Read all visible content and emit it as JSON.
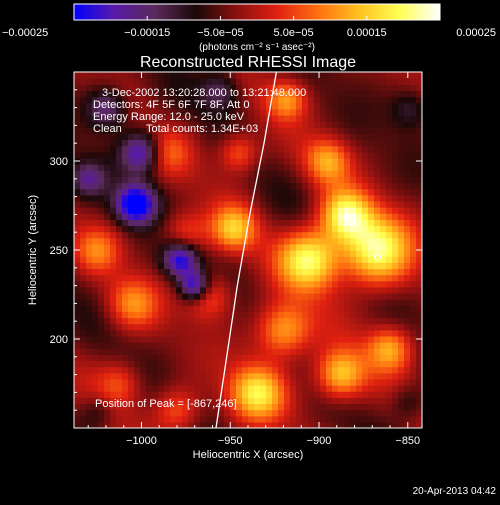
{
  "chart_data": {
    "type": "heatmap",
    "title": "Reconstructed RHESSI Image",
    "xlabel": "Heliocentric X (arcsec)",
    "ylabel": "Heliocentric Y (arcsec)",
    "xlim": [
      -1038,
      -842
    ],
    "ylim": [
      150,
      350
    ],
    "x_ticks": [
      -1000,
      -950,
      -900,
      -850
    ],
    "x_tick_labels": [
      "−1000",
      "−950",
      "−900",
      "−850"
    ],
    "y_ticks": [
      200,
      250,
      300
    ],
    "y_tick_labels": [
      "200",
      "250",
      "300"
    ],
    "colorbar": {
      "range": [
        -0.00025,
        0.00025
      ],
      "ticks": [
        -0.00025,
        -0.00015,
        -5e-05,
        5e-05,
        0.00015,
        0.00025
      ],
      "tick_labels": [
        "−0.00025",
        "−0.00015",
        "−5.0e−05",
        "5.0e−05",
        "0.00015",
        "0.00025"
      ],
      "unit_label": "(photons cm⁻² s⁻¹ asec⁻²)",
      "colors": [
        "#0000ff",
        "#5a1aa8",
        "#5a2a5a",
        "#1a0808",
        "#8a1010",
        "#e02010",
        "#ff7010",
        "#ffc020",
        "#ffff50",
        "#ffffff"
      ]
    },
    "annotations": [
      "3-Dec-2002 13:20:28.000 to 13:21:48.000",
      "Detectors: 4F 5F 6F 7F 8F, Att 0",
      "Energy Range: 12.0 - 25.0 keV",
      "Clean",
      "Total counts: 1.34E+03"
    ],
    "peak_label": "Position of Peak = [-867,246]",
    "peak": [
      -867,
      246
    ],
    "limb": [
      [
        -958,
        150
      ],
      [
        -952,
        190
      ],
      [
        -946,
        230
      ],
      [
        -939,
        270
      ],
      [
        -931,
        310
      ],
      [
        -924,
        350
      ]
    ],
    "blobs": [
      {
        "x": -868,
        "y": 250,
        "v": 0.00025,
        "s": 14
      },
      {
        "x": -885,
        "y": 270,
        "v": 0.00022,
        "s": 10
      },
      {
        "x": -905,
        "y": 245,
        "v": 0.00024,
        "s": 12
      },
      {
        "x": -920,
        "y": 205,
        "v": 0.00018,
        "s": 11
      },
      {
        "x": -935,
        "y": 170,
        "v": 0.00021,
        "s": 11
      },
      {
        "x": -888,
        "y": 180,
        "v": 0.0002,
        "s": 10
      },
      {
        "x": -860,
        "y": 195,
        "v": 0.00016,
        "s": 9
      },
      {
        "x": -895,
        "y": 300,
        "v": 0.00015,
        "s": 9
      },
      {
        "x": -918,
        "y": 335,
        "v": 0.00014,
        "s": 8
      },
      {
        "x": -945,
        "y": 305,
        "v": 0.00013,
        "s": 8
      },
      {
        "x": -948,
        "y": 262,
        "v": 0.00017,
        "s": 9
      },
      {
        "x": -962,
        "y": 225,
        "v": 0.00012,
        "s": 9
      },
      {
        "x": -975,
        "y": 260,
        "v": 0.0001,
        "s": 9
      },
      {
        "x": -1005,
        "y": 220,
        "v": 0.00013,
        "s": 10
      },
      {
        "x": -1025,
        "y": 250,
        "v": 0.00011,
        "s": 9
      },
      {
        "x": -985,
        "y": 305,
        "v": 9e-05,
        "s": 9
      },
      {
        "x": -980,
        "y": 160,
        "v": 0.00011,
        "s": 9
      },
      {
        "x": -1012,
        "y": 175,
        "v": 0.0001,
        "s": 9
      },
      {
        "x": -1003,
        "y": 276,
        "v": -0.00025,
        "s": 8
      },
      {
        "x": -1000,
        "y": 305,
        "v": -0.00018,
        "s": 8
      },
      {
        "x": -978,
        "y": 245,
        "v": -0.0002,
        "s": 7
      },
      {
        "x": -970,
        "y": 230,
        "v": -0.00021,
        "s": 6
      },
      {
        "x": -1020,
        "y": 330,
        "v": -0.00014,
        "s": 8
      },
      {
        "x": -1030,
        "y": 290,
        "v": -0.00012,
        "s": 7
      },
      {
        "x": -955,
        "y": 340,
        "v": -0.0001,
        "s": 8
      },
      {
        "x": -848,
        "y": 330,
        "v": -8e-05,
        "s": 8
      },
      {
        "x": -850,
        "y": 165,
        "v": -6e-05,
        "s": 7
      },
      {
        "x": -1025,
        "y": 160,
        "v": -6e-05,
        "s": 7
      }
    ]
  },
  "footer": {
    "timestamp": "20-Apr-2013 04:42"
  }
}
